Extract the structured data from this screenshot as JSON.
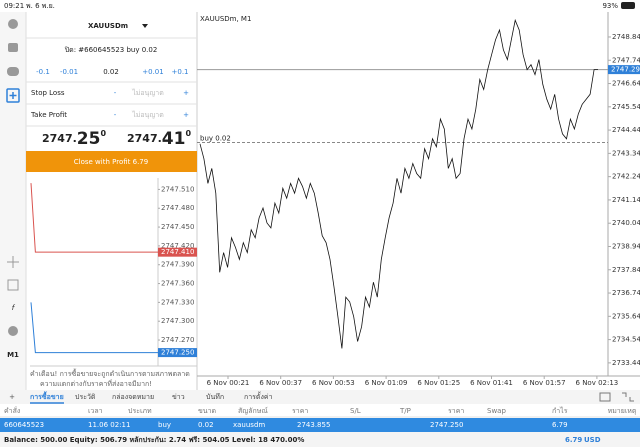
{
  "status_bar": {
    "time": "09:21",
    "date": "พ. 6 พ.ย.",
    "battery": "93%"
  },
  "sidebar": {
    "timeframe": "M1"
  },
  "order_panel": {
    "symbol": "XAUUSDm",
    "position": "ปิด: #660645523 buy 0.02",
    "volume_steps": [
      "-0.1",
      "-0.01",
      "+0.01",
      "+0.1"
    ],
    "volume": "0.02",
    "stop_loss": {
      "label": "Stop Loss",
      "minus": "-",
      "placeholder": "ไม่อนุญาต",
      "plus": "+"
    },
    "take_profit": {
      "label": "Take Profit",
      "minus": "-",
      "placeholder": "ไม่อนุญาต",
      "plus": "+"
    },
    "bid": {
      "main": "2747.",
      "big": "25",
      "sup": "0"
    },
    "ask": {
      "main": "2747.",
      "big": "41",
      "sup": "0"
    },
    "close_button": "Close with Profit 6.79",
    "warning": [
      "คำเตือน! การซื้อขายจะถูกดำเนินการตามสภาพตลาด",
      "ความแตกต่างกับราคาที่ส่งอาจมีมาก!"
    ]
  },
  "tick_chart": {
    "type": "line",
    "ylim": [
      2747.235,
      2747.525
    ],
    "yticks": [
      {
        "value": 2747.51,
        "label": "2747.510"
      },
      {
        "value": 2747.48,
        "label": "2747.480"
      },
      {
        "value": 2747.45,
        "label": "2747.450"
      },
      {
        "value": 2747.42,
        "label": "2747.420"
      },
      {
        "value": 2747.39,
        "label": "2747.390"
      },
      {
        "value": 2747.36,
        "label": "2747.360"
      },
      {
        "value": 2747.33,
        "label": "2747.330"
      },
      {
        "value": 2747.3,
        "label": "2747.300"
      },
      {
        "value": 2747.27,
        "label": "2747.270"
      }
    ],
    "price_tags": [
      {
        "value": 2747.41,
        "label": "2747.410",
        "color": "#d9534f"
      },
      {
        "value": 2747.25,
        "label": "2747.250",
        "color": "#2f80d8"
      }
    ],
    "series": [
      {
        "color": "#d9534f",
        "values": [
          2747.52,
          2747.41,
          2747.41,
          2747.41,
          2747.41,
          2747.41,
          2747.41,
          2747.41,
          2747.41,
          2747.41,
          2747.41,
          2747.41,
          2747.41,
          2747.41,
          2747.41,
          2747.41,
          2747.41,
          2747.41,
          2747.41,
          2747.41,
          2747.41,
          2747.41,
          2747.41,
          2747.41,
          2747.41,
          2747.41,
          2747.41,
          2747.41,
          2747.41,
          2747.41
        ]
      },
      {
        "color": "#2f80d8",
        "values": [
          2747.33,
          2747.25,
          2747.25,
          2747.25,
          2747.25,
          2747.25,
          2747.25,
          2747.25,
          2747.25,
          2747.25,
          2747.25,
          2747.25,
          2747.25,
          2747.25,
          2747.25,
          2747.25,
          2747.25,
          2747.25,
          2747.25,
          2747.25,
          2747.25,
          2747.25,
          2747.25,
          2747.25,
          2747.25,
          2747.25,
          2747.25,
          2747.25,
          2747.25,
          2747.25
        ]
      }
    ]
  },
  "chart_data": {
    "type": "line",
    "title": "XAUUSDm, M1",
    "color": "#111",
    "x_labels": [
      "6 Nov 00:21",
      "6 Nov 00:37",
      "6 Nov 00:53",
      "6 Nov 01:09",
      "6 Nov 01:25",
      "6 Nov 01:41",
      "6 Nov 01:57",
      "6 Nov 02:13"
    ],
    "ylim": [
      2732.82,
      2750.02
    ],
    "yticks": [
      {
        "value": 2748.84,
        "label": "2748.840"
      },
      {
        "value": 2747.74,
        "label": "2747.740"
      },
      {
        "value": 2746.64,
        "label": "2746.640"
      },
      {
        "value": 2745.54,
        "label": "2745.540"
      },
      {
        "value": 2744.44,
        "label": "2744.440"
      },
      {
        "value": 2743.34,
        "label": "2743.340"
      },
      {
        "value": 2742.24,
        "label": "2742.240"
      },
      {
        "value": 2741.14,
        "label": "2741.140"
      },
      {
        "value": 2740.04,
        "label": "2740.040"
      },
      {
        "value": 2738.94,
        "label": "2738.940"
      },
      {
        "value": 2737.84,
        "label": "2737.840"
      },
      {
        "value": 2736.74,
        "label": "2736.740"
      },
      {
        "value": 2735.64,
        "label": "2735.640"
      },
      {
        "value": 2734.54,
        "label": "2734.540"
      },
      {
        "value": 2733.44,
        "label": "2733.440"
      }
    ],
    "current_price": {
      "value": 2747.298,
      "label": "2747.298"
    },
    "order_line": {
      "value": 2743.855,
      "label": "buy 0.02"
    },
    "values": [
      2743.79,
      2743.09,
      2741.92,
      2742.63,
      2741.46,
      2737.72,
      2738.65,
      2737.95,
      2739.35,
      2738.89,
      2738.33,
      2739.12,
      2738.65,
      2739.73,
      2739.35,
      2740.29,
      2740.76,
      2740.05,
      2739.82,
      2740.99,
      2740.52,
      2741.69,
      2741.22,
      2741.92,
      2741.46,
      2742.16,
      2741.78,
      2741.22,
      2741.92,
      2741.46,
      2740.52,
      2739.45,
      2739.12,
      2738.33,
      2737.02,
      2735.62,
      2734.12,
      2736.55,
      2736.32,
      2735.62,
      2734.45,
      2735.15,
      2736.55,
      2736.08,
      2737.25,
      2736.55,
      2738.33,
      2739.35,
      2740.29,
      2740.99,
      2742.16,
      2741.46,
      2742.63,
      2742.16,
      2742.86,
      2742.39,
      2742.16,
      2743.56,
      2743.09,
      2744.03,
      2743.65,
      2744.96,
      2744.49,
      2742.63,
      2743.09,
      2742.16,
      2742.39,
      2744.03,
      2744.96,
      2744.49,
      2745.43,
      2746.83,
      2746.36,
      2747.3,
      2748.0,
      2748.7,
      2749.17,
      2748.23,
      2747.77,
      2748.7,
      2749.63,
      2749.17,
      2748.0,
      2747.3,
      2747.53,
      2747.06,
      2747.77,
      2746.6,
      2745.9,
      2745.43,
      2746.13,
      2744.96,
      2744.26,
      2744.03,
      2744.96,
      2744.49,
      2745.2,
      2745.66,
      2745.9,
      2746.13,
      2747.3,
      2747.3
    ]
  },
  "tabs": [
    "การซื้อขาย",
    "ประวัติ",
    "กล่องจดหมาย",
    "ข่าว",
    "บันทึก",
    "การตั้งค่า"
  ],
  "table": {
    "columns": [
      "คำสั่ง",
      "เวลา",
      "ประเภท",
      "ขนาด",
      "สัญลักษณ์",
      "ราคา",
      "S/L",
      "T/P",
      "ราคา",
      "Swap",
      "กำไร",
      "หมายเหตุ"
    ],
    "row": {
      "order": "660645523",
      "time": "11.06 02:11",
      "type": "buy",
      "volume": "0.02",
      "symbol": "xauusdm",
      "open_price": "2743.855",
      "price": "2747.250",
      "profit": "6.79"
    }
  },
  "footer": {
    "balance": "Balance: 500.00 Equity: 506.79 หลักประกัน: 2.74 ฟรี: 504.05 Level: 18 470.00%",
    "profit": "6.79",
    "currency": "USD"
  }
}
